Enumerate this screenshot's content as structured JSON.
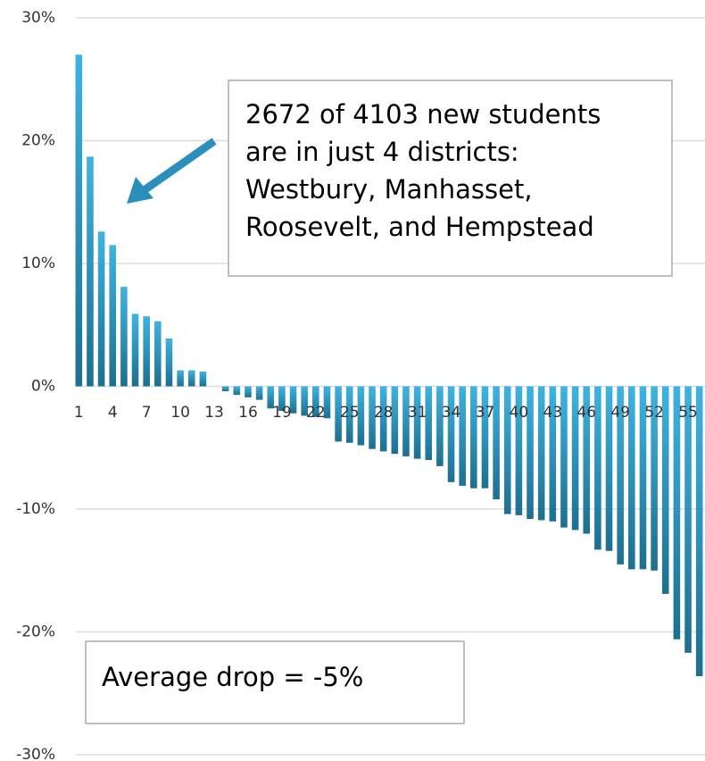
{
  "chart_data": {
    "type": "bar",
    "categories": [
      "1",
      null,
      null,
      "4",
      null,
      null,
      "7",
      null,
      null,
      "10",
      null,
      null,
      "13",
      null,
      null,
      "16",
      null,
      null,
      "19",
      null,
      null,
      "22",
      null,
      null,
      "25",
      null,
      null,
      "28",
      null,
      null,
      "31",
      null,
      null,
      "34",
      null,
      null,
      "37",
      null,
      null,
      "40",
      null,
      null,
      "43",
      null,
      null,
      "46",
      null,
      null,
      "49",
      null,
      null,
      "52",
      null,
      null,
      "55",
      null
    ],
    "values": [
      27,
      18.7,
      12.6,
      11.5,
      8.1,
      5.9,
      5.7,
      5.3,
      3.9,
      1.3,
      1.3,
      1.2,
      0,
      -0.4,
      -0.7,
      -0.9,
      -1.1,
      -1.8,
      -2.0,
      -2.2,
      -2.4,
      -2.5,
      -2.6,
      -4.5,
      -4.6,
      -4.8,
      -5.1,
      -5.3,
      -5.5,
      -5.7,
      -5.9,
      -6.0,
      -6.5,
      -7.8,
      -8.1,
      -8.3,
      -8.3,
      -9.2,
      -10.4,
      -10.5,
      -10.8,
      -10.9,
      -11.0,
      -11.5,
      -11.7,
      -12.0,
      -13.3,
      -13.4,
      -14.5,
      -14.9,
      -14.9,
      -15.0,
      -16.9,
      -20.6,
      -21.7,
      -23.6
    ],
    "color": "#2a8fba",
    "ylim": [
      -30,
      30
    ],
    "yticks": [
      {
        "value": -30,
        "label": "-30%"
      },
      {
        "value": -20,
        "label": "-20%"
      },
      {
        "value": -10,
        "label": "-10%"
      },
      {
        "value": 0,
        "label": "0%"
      },
      {
        "value": 10,
        "label": "10%"
      },
      {
        "value": 20,
        "label": "20%"
      },
      {
        "value": 30,
        "label": "30%"
      }
    ],
    "grid": true,
    "annotations": [
      {
        "lines": [
          "2672 of 4103 new students",
          "are in just 4 districts:",
          "Westbury, Manhasset,",
          "Roosevelt, and Hempstead"
        ]
      },
      {
        "lines": [
          "Average drop = -5%"
        ]
      }
    ]
  }
}
